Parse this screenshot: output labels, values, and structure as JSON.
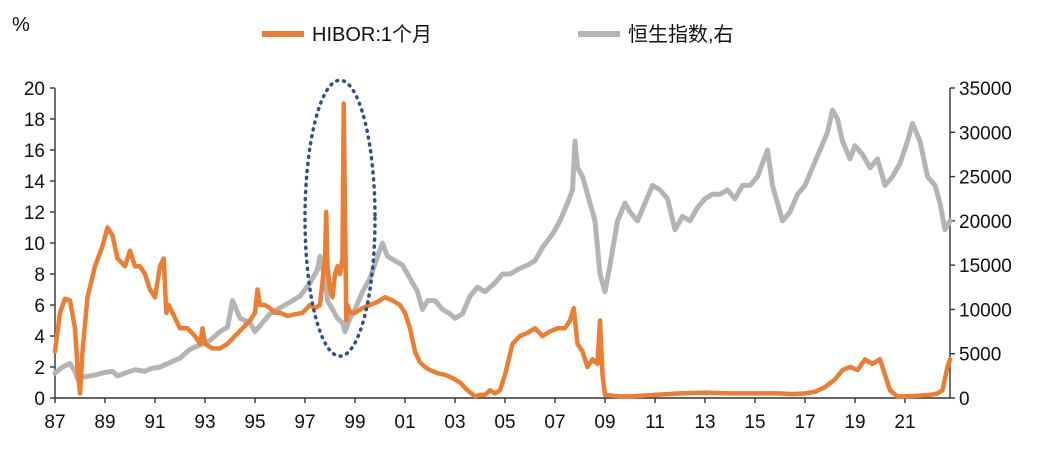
{
  "chart_data": {
    "type": "line",
    "left_axis": {
      "unit_label": "%",
      "ylim": [
        0,
        20
      ],
      "ticks": [
        "0",
        "2",
        "4",
        "6",
        "8",
        "10",
        "12",
        "14",
        "16",
        "18",
        "20"
      ]
    },
    "right_axis": {
      "ylim": [
        0,
        35000
      ],
      "ticks": [
        "0",
        "5000",
        "10000",
        "15000",
        "20000",
        "25000",
        "30000",
        "35000"
      ]
    },
    "x_axis": {
      "xlim": [
        1987,
        2022.8
      ],
      "ticks": [
        "87",
        "89",
        "91",
        "93",
        "95",
        "97",
        "99",
        "01",
        "03",
        "05",
        "07",
        "09",
        "11",
        "13",
        "15",
        "17",
        "19",
        "21"
      ]
    },
    "grid": false,
    "legend_position": "top",
    "highlight": {
      "shape": "dotted-ellipse",
      "color": "#2f4f8f",
      "x_range": [
        1997.0,
        1999.8
      ],
      "y_range": [
        2.7,
        20.5
      ]
    },
    "series": [
      {
        "name": "HIBOR:1个月",
        "axis": "left",
        "color": "#ed7d31",
        "x": [
          1987.0,
          1987.2,
          1987.4,
          1987.6,
          1987.8,
          1987.9,
          1988.0,
          1988.1,
          1988.3,
          1988.6,
          1988.9,
          1989.1,
          1989.3,
          1989.5,
          1989.8,
          1990.0,
          1990.2,
          1990.4,
          1990.6,
          1990.8,
          1991.0,
          1991.2,
          1991.35,
          1991.45,
          1991.55,
          1991.7,
          1992.0,
          1992.3,
          1992.6,
          1992.8,
          1992.9,
          1993.0,
          1993.3,
          1993.6,
          1993.9,
          1994.2,
          1994.5,
          1994.8,
          1995.0,
          1995.1,
          1995.2,
          1995.4,
          1995.6,
          1995.8,
          1996.0,
          1996.3,
          1996.6,
          1996.9,
          1997.2,
          1997.4,
          1997.6,
          1997.8,
          1997.85,
          1997.9,
          1998.0,
          1998.1,
          1998.2,
          1998.3,
          1998.4,
          1998.5,
          1998.55,
          1998.6,
          1998.65,
          1998.7,
          1998.8,
          1998.9,
          1999.0,
          1999.3,
          1999.6,
          1999.9,
          2000.2,
          2000.5,
          2000.8,
          2001.0,
          2001.2,
          2001.4,
          2001.6,
          2001.8,
          2002.0,
          2002.3,
          2002.6,
          2002.9,
          2003.2,
          2003.5,
          2003.8,
          2004.0,
          2004.2,
          2004.4,
          2004.6,
          2004.8,
          2005.0,
          2005.3,
          2005.6,
          2005.9,
          2006.2,
          2006.5,
          2006.8,
          2007.1,
          2007.4,
          2007.6,
          2007.75,
          2007.9,
          2008.1,
          2008.3,
          2008.5,
          2008.7,
          2008.8,
          2008.9,
          2009.0,
          2009.3,
          2009.6,
          2010.0,
          2011.0,
          2012.0,
          2013.0,
          2014.0,
          2015.0,
          2016.0,
          2016.5,
          2017.0,
          2017.4,
          2017.8,
          2018.2,
          2018.5,
          2018.8,
          2019.1,
          2019.4,
          2019.7,
          2020.0,
          2020.2,
          2020.4,
          2020.7,
          2021.0,
          2021.5,
          2022.0,
          2022.3,
          2022.5,
          2022.7,
          2022.8
        ],
        "y": [
          3.0,
          5.5,
          6.4,
          6.3,
          4.5,
          2.0,
          0.3,
          3.0,
          6.5,
          8.5,
          9.8,
          11.0,
          10.5,
          9.0,
          8.5,
          9.5,
          8.5,
          8.5,
          8.0,
          7.0,
          6.5,
          8.5,
          9.0,
          5.5,
          6.0,
          5.5,
          4.5,
          4.5,
          4.0,
          3.5,
          4.5,
          3.5,
          3.2,
          3.2,
          3.5,
          4.0,
          4.5,
          5.0,
          5.5,
          7.0,
          6.0,
          6.0,
          5.8,
          5.5,
          5.5,
          5.3,
          5.4,
          5.5,
          6.0,
          5.8,
          6.0,
          9.0,
          12.0,
          8.5,
          7.0,
          6.5,
          8.0,
          8.5,
          8.0,
          9.0,
          19.0,
          12.0,
          5.0,
          6.0,
          5.5,
          5.5,
          5.5,
          5.8,
          6.0,
          6.2,
          6.5,
          6.3,
          6.0,
          5.5,
          4.5,
          3.0,
          2.3,
          2.0,
          1.8,
          1.6,
          1.5,
          1.3,
          1.0,
          0.5,
          0.1,
          0.2,
          0.2,
          0.5,
          0.3,
          0.5,
          1.5,
          3.5,
          4.0,
          4.2,
          4.5,
          4.0,
          4.3,
          4.5,
          4.5,
          5.0,
          5.8,
          3.5,
          3.0,
          2.0,
          2.5,
          2.2,
          5.0,
          1.5,
          0.2,
          0.15,
          0.1,
          0.1,
          0.2,
          0.3,
          0.35,
          0.3,
          0.3,
          0.3,
          0.25,
          0.3,
          0.4,
          0.7,
          1.2,
          1.8,
          2.0,
          1.8,
          2.5,
          2.2,
          2.5,
          1.5,
          0.5,
          0.1,
          0.1,
          0.15,
          0.2,
          0.3,
          0.5,
          2.0,
          2.5
        ]
      },
      {
        "name": "恒生指数,右",
        "axis": "right",
        "color": "#b4b4b4",
        "x": [
          1987.0,
          1987.3,
          1987.6,
          1987.8,
          1987.9,
          1988.2,
          1988.6,
          1989.0,
          1989.3,
          1989.5,
          1989.8,
          1990.2,
          1990.6,
          1990.8,
          1991.2,
          1991.6,
          1992.0,
          1992.4,
          1992.8,
          1993.2,
          1993.6,
          1993.9,
          1994.1,
          1994.4,
          1994.8,
          1995.0,
          1995.3,
          1995.6,
          1995.9,
          1996.2,
          1996.5,
          1996.8,
          1997.2,
          1997.5,
          1997.6,
          1997.8,
          1997.9,
          1998.1,
          1998.3,
          1998.5,
          1998.6,
          1998.8,
          1999.0,
          1999.3,
          1999.6,
          1999.9,
          2000.1,
          2000.3,
          2000.6,
          2000.9,
          2001.2,
          2001.5,
          2001.7,
          2001.9,
          2002.2,
          2002.5,
          2002.8,
          2003.0,
          2003.3,
          2003.6,
          2003.9,
          2004.2,
          2004.6,
          2004.9,
          2005.2,
          2005.5,
          2005.9,
          2006.2,
          2006.5,
          2006.9,
          2007.2,
          2007.5,
          2007.7,
          2007.8,
          2007.9,
          2008.1,
          2008.4,
          2008.6,
          2008.8,
          2009.0,
          2009.2,
          2009.5,
          2009.8,
          2010.0,
          2010.3,
          2010.6,
          2010.9,
          2011.2,
          2011.5,
          2011.8,
          2012.1,
          2012.4,
          2012.7,
          2013.0,
          2013.3,
          2013.6,
          2013.9,
          2014.2,
          2014.5,
          2014.8,
          2015.1,
          2015.3,
          2015.5,
          2015.7,
          2015.9,
          2016.1,
          2016.4,
          2016.7,
          2017.0,
          2017.3,
          2017.6,
          2017.9,
          2018.1,
          2018.3,
          2018.5,
          2018.8,
          2019.0,
          2019.3,
          2019.6,
          2019.9,
          2020.2,
          2020.5,
          2020.8,
          2021.1,
          2021.3,
          2021.6,
          2021.9,
          2022.2,
          2022.4,
          2022.6,
          2022.8
        ],
        "y": [
          2800,
          3500,
          3900,
          3000,
          2200,
          2400,
          2600,
          2900,
          3000,
          2500,
          2800,
          3200,
          3000,
          3300,
          3500,
          4000,
          4500,
          5500,
          6000,
          6500,
          7500,
          8000,
          11000,
          9000,
          8500,
          7500,
          8500,
          9500,
          10000,
          10500,
          11000,
          11500,
          13000,
          14500,
          16000,
          13500,
          11000,
          10000,
          9000,
          8500,
          7500,
          9000,
          10000,
          12000,
          13500,
          16000,
          17500,
          16000,
          15500,
          15000,
          13500,
          12000,
          10000,
          11000,
          11000,
          10000,
          9500,
          9000,
          9500,
          11500,
          12500,
          12000,
          13000,
          14000,
          14000,
          14500,
          15000,
          15500,
          17000,
          18500,
          20000,
          22000,
          23500,
          29000,
          26000,
          25000,
          22000,
          20000,
          14000,
          12000,
          15000,
          20000,
          22000,
          21000,
          20000,
          22000,
          24000,
          23500,
          22500,
          19000,
          20500,
          20000,
          21500,
          22500,
          23000,
          23000,
          23500,
          22500,
          24000,
          24000,
          25000,
          26500,
          28000,
          24000,
          22000,
          20000,
          21000,
          23000,
          24000,
          26000,
          28000,
          30000,
          32500,
          31500,
          29000,
          27000,
          28500,
          27500,
          26000,
          27000,
          24000,
          25000,
          26500,
          29000,
          31000,
          29000,
          25000,
          24000,
          22000,
          19000,
          20000
        ]
      }
    ]
  }
}
